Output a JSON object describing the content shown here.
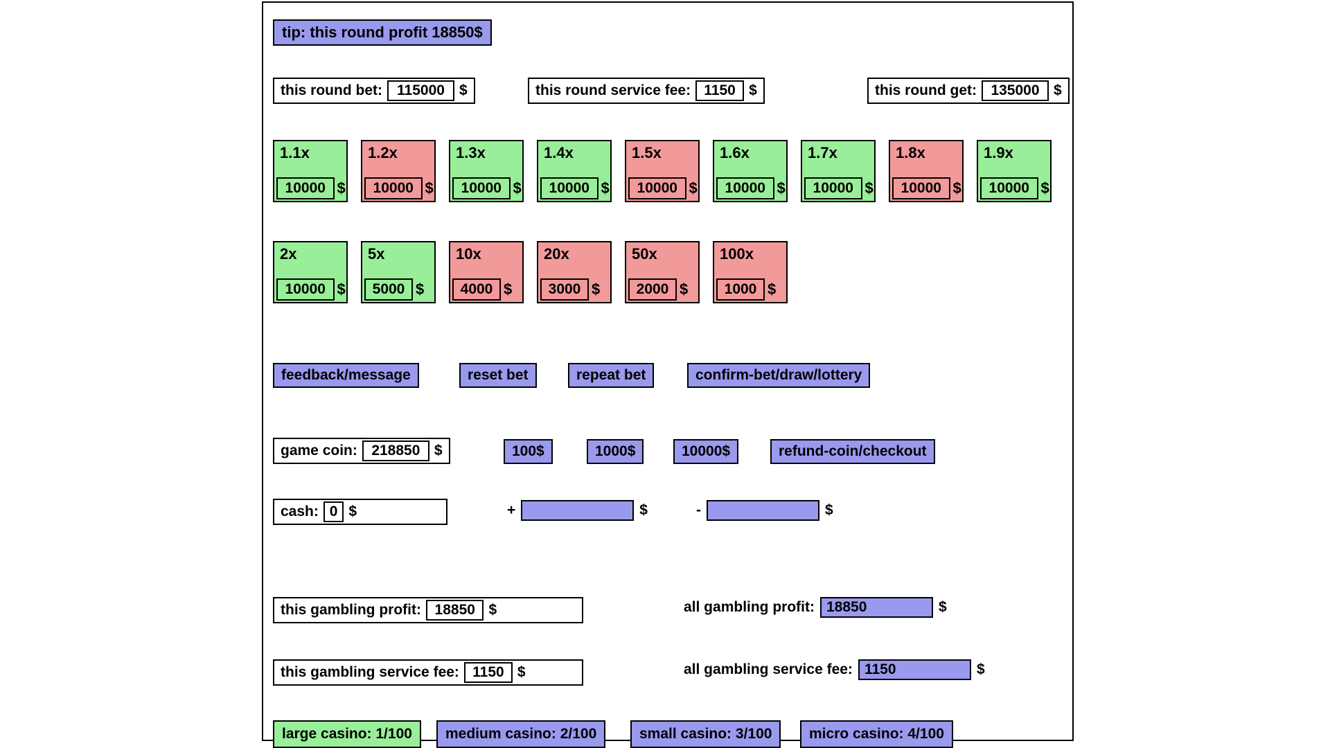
{
  "currency": "$",
  "colors": {
    "green": "#99ee99",
    "red": "#f29a9a",
    "blue": "#9999ee"
  },
  "panel": {
    "tip": "tip: this round profit 18850$",
    "round": {
      "bet": {
        "label": "this round bet:",
        "value": "115000"
      },
      "service_fee": {
        "label": "this round service fee:",
        "value": "1150"
      },
      "get": {
        "label": "this round get:",
        "value": "135000"
      }
    },
    "multipliers": {
      "row1": [
        {
          "label": "1.1x",
          "value": "10000",
          "color": "green"
        },
        {
          "label": "1.2x",
          "value": "10000",
          "color": "red"
        },
        {
          "label": "1.3x",
          "value": "10000",
          "color": "green"
        },
        {
          "label": "1.4x",
          "value": "10000",
          "color": "green"
        },
        {
          "label": "1.5x",
          "value": "10000",
          "color": "red"
        },
        {
          "label": "1.6x",
          "value": "10000",
          "color": "green"
        },
        {
          "label": "1.7x",
          "value": "10000",
          "color": "green"
        },
        {
          "label": "1.8x",
          "value": "10000",
          "color": "red"
        },
        {
          "label": "1.9x",
          "value": "10000",
          "color": "green"
        }
      ],
      "row2": [
        {
          "label": "2x",
          "value": "10000",
          "color": "green"
        },
        {
          "label": "5x",
          "value": "5000",
          "color": "green"
        },
        {
          "label": "10x",
          "value": "4000",
          "color": "red"
        },
        {
          "label": "20x",
          "value": "3000",
          "color": "red"
        },
        {
          "label": "50x",
          "value": "2000",
          "color": "red"
        },
        {
          "label": "100x",
          "value": "1000",
          "color": "red"
        }
      ]
    },
    "actions": {
      "feedback": "feedback/message",
      "reset": "reset bet",
      "repeat": "repeat bet",
      "confirm": "confirm-bet/draw/lottery"
    },
    "coin": {
      "label": "game coin:",
      "value": "218850",
      "add100": "100$",
      "add1000": "1000$",
      "add10000": "10000$",
      "refund": "refund-coin/checkout"
    },
    "cash": {
      "label": "cash:",
      "value": "0",
      "plus": "+",
      "minus": "-",
      "plus_value": "",
      "minus_value": ""
    },
    "gambling": {
      "this_profit": {
        "label": "this gambling profit:",
        "value": "18850"
      },
      "all_profit": {
        "label": "all gambling profit:",
        "value": "18850"
      },
      "this_fee": {
        "label": "this gambling service fee:",
        "value": "1150"
      },
      "all_fee": {
        "label": "all gambling service fee:",
        "value": "1150"
      }
    },
    "casinos": [
      {
        "label": "large casino: 1/100",
        "color": "green"
      },
      {
        "label": "medium casino: 2/100",
        "color": "blue"
      },
      {
        "label": "small casino: 3/100",
        "color": "blue"
      },
      {
        "label": "micro casino: 4/100",
        "color": "blue"
      }
    ]
  }
}
